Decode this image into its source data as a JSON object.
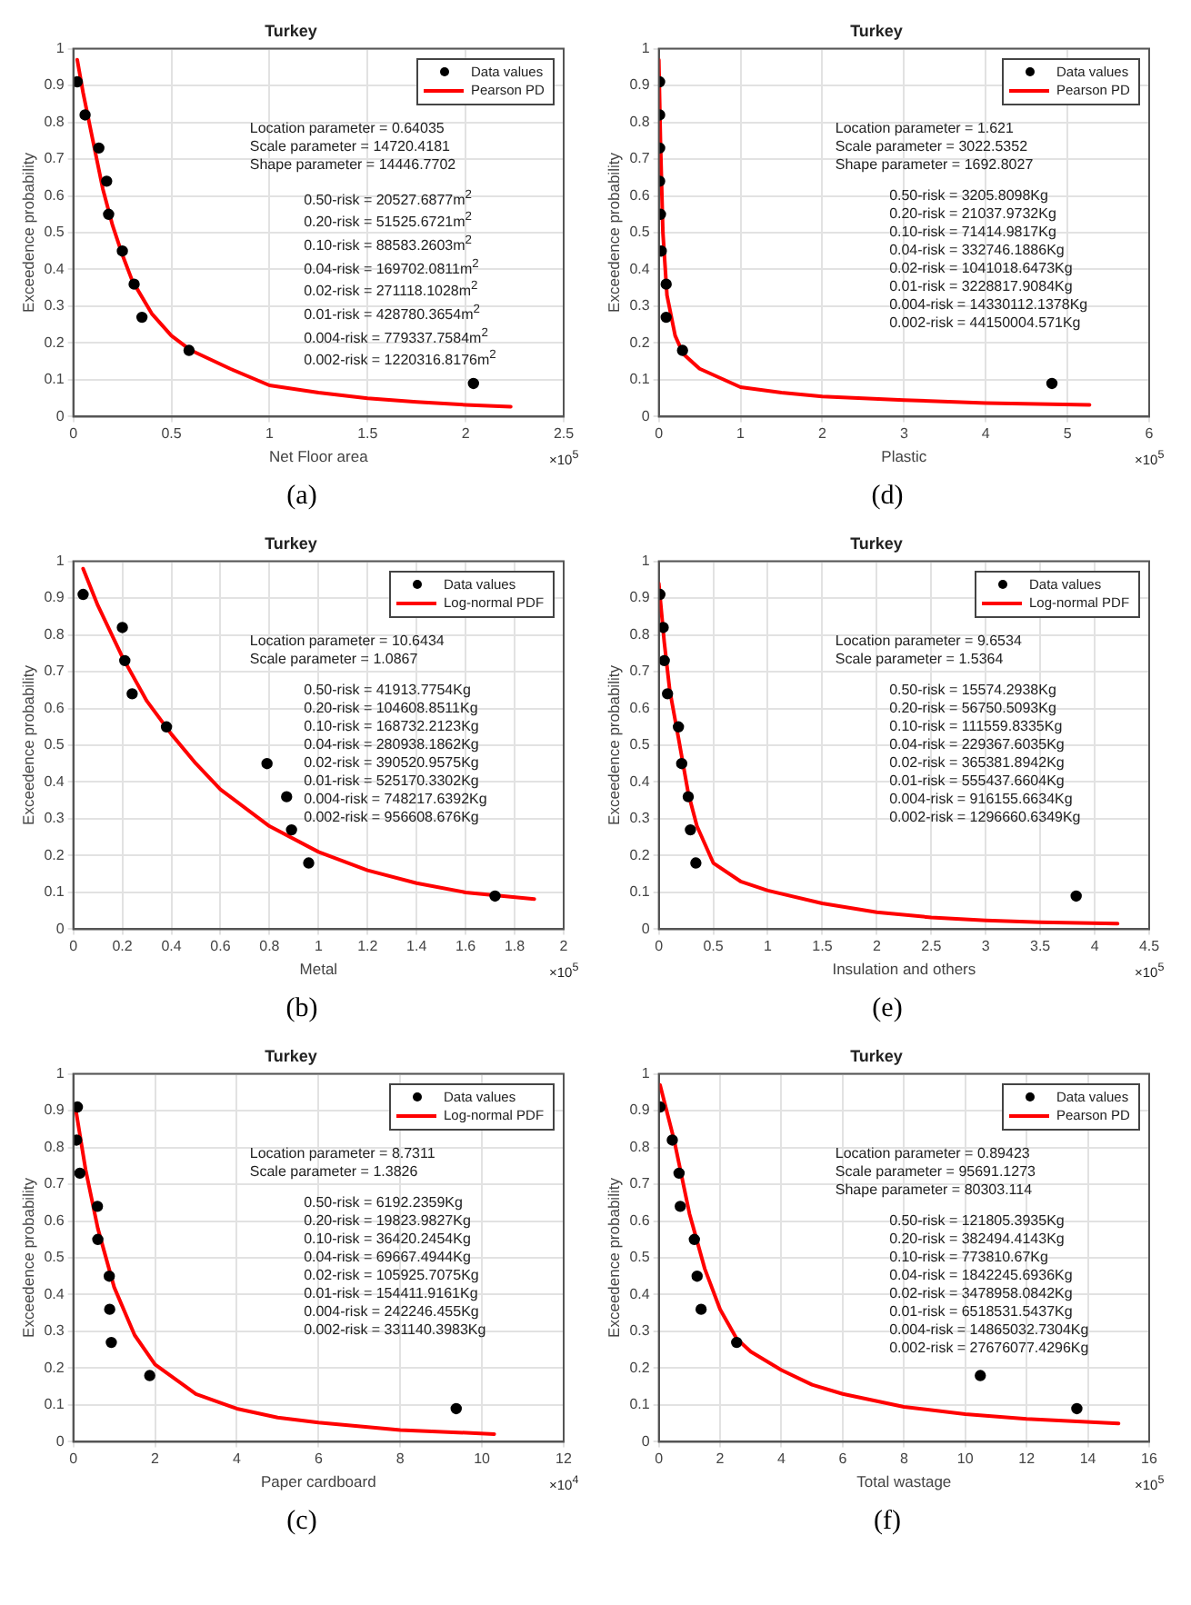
{
  "chart_data": [
    {
      "type": "scatter",
      "title": "Turkey",
      "xlabel": "Net Floor area",
      "ylabel": "Exceedence probability",
      "xlim": [
        0,
        2.5
      ],
      "xticks": [
        0,
        0.5,
        1,
        1.5,
        2,
        2.5
      ],
      "ylim": [
        0,
        1
      ],
      "yticks": [
        0,
        0.1,
        0.2,
        0.3,
        0.4,
        0.5,
        0.6,
        0.7,
        0.8,
        0.9,
        1
      ],
      "grid": true,
      "legend": "top right",
      "series": [
        {
          "name": "Data values",
          "type": "scatter",
          "marker": "circle",
          "color": "#000000",
          "x": [
            0.02,
            0.06,
            0.13,
            0.17,
            0.18,
            0.25,
            0.31,
            0.35,
            0.59,
            2.04
          ],
          "values": [
            0.91,
            0.82,
            0.73,
            0.64,
            0.55,
            0.45,
            0.36,
            0.27,
            0.18,
            0.09
          ]
        },
        {
          "name": "Pearson PD",
          "type": "line",
          "marker": "none",
          "line_style": "solid",
          "color": "#ff0000",
          "x": [
            0.02,
            0.05,
            0.1,
            0.15,
            0.2,
            0.25,
            0.3,
            0.4,
            0.5,
            0.6,
            0.8,
            1.0,
            1.25,
            1.5,
            1.75,
            2.0,
            2.23
          ],
          "values": [
            0.97,
            0.88,
            0.75,
            0.62,
            0.52,
            0.44,
            0.37,
            0.28,
            0.22,
            0.18,
            0.13,
            0.085,
            0.065,
            0.05,
            0.04,
            0.032,
            0.027
          ]
        }
      ],
      "annotations": [
        "Location parameter = 0.64035\nScale parameter = 14720.4181\nShape parameter = 14446.7702",
        "0.50-risk = 20527.6877m$^{2}$\n0.20-risk = 51525.6721m$^{2}$\n0.10-risk = 88583.2603m$^{2}$\n0.04-risk = 169702.0811m$^{2}$\n0.02-risk = 271118.1028m$^{2}$\n0.01-risk = 428780.3654m$^{2}$\n0.004-risk = 779337.7584m$^{2}$\n0.002-risk = 1220316.8176m$^{2}$",
        "×10$^{5}$",
        "(a)"
      ]
    },
    {
      "type": "scatter",
      "title": "Turkey",
      "xlabel": "Plastic",
      "ylabel": "Exceedence probability",
      "xlim": [
        0,
        6
      ],
      "xticks": [
        0,
        1,
        2,
        3,
        4,
        5,
        6
      ],
      "ylim": [
        0,
        1
      ],
      "yticks": [
        0,
        0.1,
        0.2,
        0.3,
        0.4,
        0.5,
        0.6,
        0.7,
        0.8,
        0.9,
        1
      ],
      "grid": true,
      "legend": "top right",
      "series": [
        {
          "name": "Data values",
          "type": "scatter",
          "marker": "circle",
          "color": "#000000",
          "x": [
            0.01,
            0.01,
            0.01,
            0.01,
            0.02,
            0.03,
            0.09,
            0.09,
            0.29,
            4.81
          ],
          "values": [
            0.91,
            0.82,
            0.73,
            0.64,
            0.55,
            0.45,
            0.36,
            0.27,
            0.18,
            0.09
          ]
        },
        {
          "name": "Pearson PD",
          "type": "line",
          "marker": "none",
          "line_style": "solid",
          "color": "#ff0000",
          "x": [
            0,
            0.02,
            0.05,
            0.1,
            0.2,
            0.3,
            0.5,
            1.0,
            1.5,
            2,
            3,
            4,
            5.27
          ],
          "values": [
            0.97,
            0.75,
            0.5,
            0.33,
            0.22,
            0.17,
            0.13,
            0.08,
            0.065,
            0.055,
            0.045,
            0.037,
            0.032
          ]
        }
      ],
      "annotations": [
        "Location parameter = 1.621\nScale parameter = 3022.5352\nShape parameter = 1692.8027",
        "0.50-risk = 3205.8098Kg\n0.20-risk = 21037.9732Kg\n0.10-risk = 71414.9817Kg\n0.04-risk = 332746.1886Kg\n0.02-risk = 1041018.6473Kg\n0.01-risk = 3228817.9084Kg\n0.004-risk = 14330112.1378Kg\n0.002-risk = 44150004.571Kg",
        "×10$^{5}$",
        "(d)"
      ]
    },
    {
      "type": "scatter",
      "title": "Turkey",
      "xlabel": "Metal",
      "ylabel": "Exceedence probability",
      "xlim": [
        0,
        2
      ],
      "xticks": [
        0,
        0.2,
        0.4,
        0.6,
        0.8,
        1,
        1.2,
        1.4,
        1.6,
        1.8,
        2
      ],
      "ylim": [
        0,
        1
      ],
      "yticks": [
        0,
        0.1,
        0.2,
        0.3,
        0.4,
        0.5,
        0.6,
        0.7,
        0.8,
        0.9,
        1
      ],
      "grid": true,
      "legend": "top right",
      "series": [
        {
          "name": "Data values",
          "type": "scatter",
          "marker": "circle",
          "color": "#000000",
          "x": [
            0.04,
            0.2,
            0.21,
            0.24,
            0.38,
            0.79,
            0.87,
            0.89,
            0.96,
            1.72
          ],
          "values": [
            0.91,
            0.82,
            0.73,
            0.64,
            0.55,
            0.45,
            0.36,
            0.27,
            0.18,
            0.09
          ]
        },
        {
          "name": "Log-normal PDF",
          "type": "line",
          "marker": "none",
          "line_style": "solid",
          "color": "#ff0000",
          "x": [
            0.04,
            0.1,
            0.2,
            0.3,
            0.4,
            0.5,
            0.6,
            0.8,
            1.0,
            1.2,
            1.4,
            1.6,
            1.88
          ],
          "values": [
            0.98,
            0.88,
            0.74,
            0.62,
            0.53,
            0.45,
            0.38,
            0.28,
            0.21,
            0.16,
            0.125,
            0.1,
            0.082
          ]
        }
      ],
      "annotations": [
        "Location parameter = 10.6434\nScale parameter = 1.0867",
        "0.50-risk = 41913.7754Kg\n0.20-risk = 104608.8511Kg\n0.10-risk = 168732.2123Kg\n0.04-risk = 280938.1862Kg\n0.02-risk = 390520.9575Kg\n0.01-risk = 525170.3302Kg\n0.004-risk = 748217.6392Kg\n0.002-risk = 956608.676Kg",
        "×10$^{5}$",
        "(b)"
      ]
    },
    {
      "type": "scatter",
      "title": "Turkey",
      "xlabel": "Insulation and others",
      "ylabel": "Exceedence probability",
      "xlim": [
        0,
        4.5
      ],
      "xticks": [
        0,
        0.5,
        1,
        1.5,
        2,
        2.5,
        3,
        3.5,
        4,
        4.5
      ],
      "ylim": [
        0,
        1
      ],
      "yticks": [
        0,
        0.1,
        0.2,
        0.3,
        0.4,
        0.5,
        0.6,
        0.7,
        0.8,
        0.9,
        1
      ],
      "grid": true,
      "legend": "top right",
      "series": [
        {
          "name": "Data values",
          "type": "scatter",
          "marker": "circle",
          "color": "#000000",
          "x": [
            0.01,
            0.04,
            0.05,
            0.08,
            0.18,
            0.21,
            0.27,
            0.29,
            0.34,
            3.83
          ],
          "values": [
            0.91,
            0.82,
            0.73,
            0.64,
            0.55,
            0.45,
            0.36,
            0.27,
            0.18,
            0.09
          ]
        },
        {
          "name": "Log-normal PDF",
          "type": "line",
          "marker": "none",
          "line_style": "solid",
          "color": "#ff0000",
          "x": [
            0,
            0.05,
            0.1,
            0.18,
            0.27,
            0.35,
            0.5,
            0.75,
            1.0,
            1.5,
            2,
            2.5,
            3,
            3.5,
            4.21
          ],
          "values": [
            0.94,
            0.78,
            0.65,
            0.52,
            0.37,
            0.28,
            0.18,
            0.13,
            0.105,
            0.07,
            0.046,
            0.032,
            0.024,
            0.019,
            0.015
          ]
        }
      ],
      "annotations": [
        "Location parameter = 9.6534\nScale parameter = 1.5364",
        "0.50-risk = 15574.2938Kg\n0.20-risk = 56750.5093Kg\n0.10-risk = 111559.8335Kg\n0.04-risk = 229367.6035Kg\n0.02-risk = 365381.8942Kg\n0.01-risk = 555437.6604Kg\n0.004-risk = 916155.6634Kg\n0.002-risk = 1296660.6349Kg",
        "×10$^{5}$",
        "(e)"
      ]
    },
    {
      "type": "scatter",
      "title": "Turkey",
      "xlabel": "Paper cardboard",
      "ylabel": "Exceedence probability",
      "xlim": [
        0,
        12
      ],
      "xticks": [
        0,
        2,
        4,
        6,
        8,
        10,
        12
      ],
      "ylim": [
        0,
        1
      ],
      "yticks": [
        0,
        0.1,
        0.2,
        0.3,
        0.4,
        0.5,
        0.6,
        0.7,
        0.8,
        0.9,
        1
      ],
      "grid": true,
      "legend": "top right",
      "series": [
        {
          "name": "Data values",
          "type": "scatter",
          "marker": "circle",
          "color": "#000000",
          "x": [
            0.1,
            0.08,
            0.16,
            0.59,
            0.6,
            0.88,
            0.89,
            0.93,
            1.87,
            9.37
          ],
          "values": [
            0.91,
            0.82,
            0.73,
            0.64,
            0.55,
            0.45,
            0.36,
            0.27,
            0.18,
            0.09
          ]
        },
        {
          "name": "Log-normal PDF",
          "type": "line",
          "marker": "none",
          "line_style": "solid",
          "color": "#ff0000",
          "x": [
            0.05,
            0.3,
            0.6,
            1.0,
            1.5,
            2,
            3,
            4,
            5,
            6,
            8,
            10.3
          ],
          "values": [
            0.91,
            0.74,
            0.58,
            0.42,
            0.29,
            0.21,
            0.13,
            0.09,
            0.066,
            0.052,
            0.032,
            0.021
          ]
        }
      ],
      "annotations": [
        "Location parameter = 8.7311\nScale parameter = 1.3826",
        "0.50-risk = 6192.2359Kg\n0.20-risk = 19823.9827Kg\n0.10-risk = 36420.2454Kg\n0.04-risk = 69667.4944Kg\n0.02-risk = 105925.7075Kg\n0.01-risk = 154411.9161Kg\n0.004-risk = 242246.455Kg\n0.002-risk = 331140.3983Kg",
        "×10$^{4}$",
        "(c)"
      ]
    },
    {
      "type": "scatter",
      "title": "Turkey",
      "xlabel": "Total wastage",
      "ylabel": "Exceedence probability",
      "xlim": [
        0,
        16
      ],
      "xticks": [
        0,
        2,
        4,
        6,
        8,
        10,
        12,
        14,
        16
      ],
      "ylim": [
        0,
        1
      ],
      "yticks": [
        0,
        0.1,
        0.2,
        0.3,
        0.4,
        0.5,
        0.6,
        0.7,
        0.8,
        0.9,
        1
      ],
      "grid": true,
      "legend": "top right",
      "series": [
        {
          "name": "Data values",
          "type": "scatter",
          "marker": "circle",
          "color": "#000000",
          "x": [
            0.04,
            0.44,
            0.66,
            0.7,
            1.16,
            1.25,
            1.38,
            2.54,
            10.49,
            13.64
          ],
          "values": [
            0.91,
            0.82,
            0.73,
            0.64,
            0.55,
            0.45,
            0.36,
            0.27,
            0.18,
            0.09
          ]
        },
        {
          "name": "Pearson PD",
          "type": "line",
          "marker": "none",
          "line_style": "solid",
          "color": "#ff0000",
          "x": [
            0.04,
            0.5,
            1.0,
            1.5,
            2,
            2.54,
            3,
            4,
            5,
            6,
            8,
            10,
            12,
            15
          ],
          "values": [
            0.97,
            0.82,
            0.62,
            0.47,
            0.36,
            0.28,
            0.245,
            0.195,
            0.155,
            0.13,
            0.095,
            0.075,
            0.062,
            0.05
          ]
        }
      ],
      "annotations": [
        "Location parameter = 0.89423\nScale parameter = 95691.1273\nShape parameter = 80303.114",
        "0.50-risk = 121805.3935Kg\n0.20-risk = 382494.4143Kg\n0.10-risk = 773810.67Kg\n0.04-risk = 1842245.6936Kg\n0.02-risk = 3478958.0842Kg\n0.01-risk = 6518531.5437Kg\n0.004-risk = 14865032.7304Kg\n0.002-risk = 27676077.4296Kg",
        "×10$^{5}$",
        "(f)"
      ]
    }
  ]
}
